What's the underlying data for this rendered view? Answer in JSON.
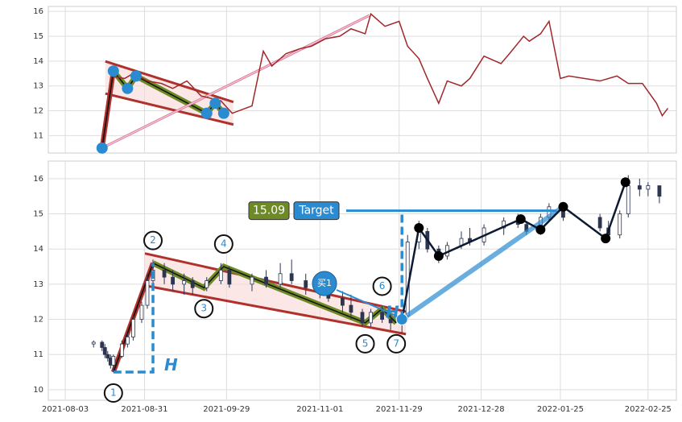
{
  "chart_data": [
    {
      "type": "line",
      "color": "#a0282b",
      "ylim": [
        10.3,
        16.2
      ],
      "yticks": [
        11,
        12,
        13,
        14,
        15,
        16
      ],
      "grid": true,
      "xlim": [
        "2021-07-28",
        "2022-03-07"
      ],
      "x": [
        "2021-08-19",
        "2021-08-24",
        "2021-08-27",
        "2021-09-01",
        "2021-09-06",
        "2021-09-10",
        "2021-09-15",
        "2021-09-20",
        "2021-09-27",
        "2021-10-01",
        "2021-10-08",
        "2021-10-12",
        "2021-10-15",
        "2021-10-20",
        "2021-10-25",
        "2021-10-29",
        "2021-11-03",
        "2021-11-08",
        "2021-11-12",
        "2021-11-17",
        "2021-11-19",
        "2021-11-24",
        "2021-11-29",
        "2021-12-02",
        "2021-12-06",
        "2021-12-09",
        "2021-12-13",
        "2021-12-16",
        "2021-12-21",
        "2021-12-24",
        "2021-12-29",
        "2022-01-04",
        "2022-01-07",
        "2022-01-12",
        "2022-01-14",
        "2022-01-18",
        "2022-01-21",
        "2022-01-25",
        "2022-01-28",
        "2022-02-08",
        "2022-02-14",
        "2022-02-18",
        "2022-02-23",
        "2022-02-28",
        "2022-03-02",
        "2022-03-04"
      ],
      "values": [
        13.4,
        13.3,
        13.5,
        13.2,
        13.1,
        12.9,
        13.2,
        12.6,
        12.4,
        11.9,
        12.2,
        14.4,
        13.8,
        14.3,
        14.5,
        14.6,
        14.9,
        15.0,
        15.3,
        15.1,
        15.9,
        15.4,
        15.6,
        14.6,
        14.1,
        13.3,
        12.3,
        13.2,
        13.0,
        13.3,
        14.2,
        13.9,
        14.3,
        15.0,
        14.8,
        15.1,
        15.6,
        13.3,
        13.4,
        13.2,
        13.4,
        13.1,
        13.1,
        12.3,
        11.8,
        12.1
      ],
      "pattern": {
        "x": [
          "2021-08-16",
          "2021-08-20",
          "2021-08-25",
          "2021-08-28",
          "2021-09-22",
          "2021-09-25",
          "2021-09-28"
        ],
        "values": [
          10.5,
          13.6,
          12.9,
          13.4,
          11.9,
          12.3,
          11.9
        ]
      }
    },
    {
      "type": "candlestick",
      "ylim": [
        9.7,
        16.5
      ],
      "yticks": [
        10,
        11,
        12,
        13,
        14,
        15,
        16
      ],
      "grid": true,
      "xlim": [
        "2021-07-28",
        "2022-03-07"
      ],
      "xticks": [
        "2021-08-03",
        "2021-08-31",
        "2021-09-29",
        "2021-11-01",
        "2021-11-29",
        "2021-12-28",
        "2022-01-25",
        "2022-02-25"
      ],
      "x": [
        "2021-08-13",
        "2021-08-16",
        "2021-08-17",
        "2021-08-18",
        "2021-08-19",
        "2021-08-20",
        "2021-08-23",
        "2021-08-25",
        "2021-08-27",
        "2021-08-30",
        "2021-09-01",
        "2021-09-03",
        "2021-09-07",
        "2021-09-10",
        "2021-09-14",
        "2021-09-17",
        "2021-09-22",
        "2021-09-27",
        "2021-09-30",
        "2021-10-08",
        "2021-10-13",
        "2021-10-18",
        "2021-10-22",
        "2021-10-27",
        "2021-11-01",
        "2021-11-04",
        "2021-11-09",
        "2021-11-12",
        "2021-11-16",
        "2021-11-19",
        "2021-11-23",
        "2021-11-26",
        "2021-11-30",
        "2021-12-02",
        "2021-12-06",
        "2021-12-09",
        "2021-12-13",
        "2021-12-16",
        "2021-12-21",
        "2021-12-24",
        "2021-12-29",
        "2022-01-05",
        "2022-01-10",
        "2022-01-13",
        "2022-01-18",
        "2022-01-21",
        "2022-01-26",
        "2022-02-08",
        "2022-02-11",
        "2022-02-15",
        "2022-02-18",
        "2022-02-22",
        "2022-02-25",
        "2022-03-01"
      ],
      "open": [
        11.3,
        11.35,
        11.2,
        11.0,
        10.9,
        10.7,
        10.95,
        11.3,
        11.5,
        12.0,
        12.4,
        13.1,
        13.4,
        13.2,
        13.0,
        13.1,
        12.9,
        13.1,
        13.4,
        13.0,
        13.2,
        13.0,
        13.3,
        13.1,
        12.9,
        12.8,
        12.6,
        12.4,
        12.2,
        11.9,
        12.2,
        12.0,
        11.9,
        12.1,
        14.2,
        14.5,
        14.0,
        13.8,
        14.1,
        14.3,
        14.2,
        14.6,
        14.8,
        14.7,
        14.5,
        14.9,
        15.2,
        14.9,
        14.6,
        14.4,
        15.0,
        15.8,
        15.7,
        15.8
      ],
      "high": [
        11.4,
        11.4,
        11.3,
        11.1,
        11.0,
        11.0,
        11.4,
        11.6,
        12.1,
        12.5,
        13.3,
        13.7,
        13.6,
        13.4,
        13.3,
        13.2,
        13.2,
        13.6,
        13.5,
        13.3,
        13.4,
        13.6,
        13.7,
        13.3,
        13.1,
        13.0,
        12.8,
        12.7,
        12.3,
        12.3,
        12.4,
        12.2,
        12.2,
        14.4,
        14.8,
        14.6,
        14.1,
        14.2,
        14.5,
        14.6,
        14.7,
        14.9,
        15.0,
        14.8,
        15.0,
        15.3,
        15.3,
        15.0,
        14.8,
        15.1,
        16.1,
        16.0,
        15.9,
        15.8
      ],
      "low": [
        11.2,
        11.1,
        10.9,
        10.8,
        10.6,
        10.5,
        10.9,
        11.2,
        11.4,
        11.9,
        12.3,
        13.0,
        13.0,
        12.8,
        12.7,
        12.7,
        12.8,
        13.0,
        12.9,
        12.8,
        12.9,
        12.9,
        13.0,
        12.7,
        12.6,
        12.5,
        12.2,
        12.0,
        11.8,
        11.8,
        11.9,
        11.7,
        11.6,
        12.0,
        14.0,
        13.9,
        13.6,
        13.7,
        14.0,
        14.1,
        14.1,
        14.4,
        14.6,
        14.4,
        14.4,
        14.8,
        14.8,
        14.5,
        14.2,
        14.3,
        14.9,
        15.5,
        15.5,
        15.3
      ],
      "close": [
        11.35,
        11.2,
        11.0,
        10.9,
        10.7,
        10.95,
        11.3,
        11.5,
        12.0,
        12.4,
        13.1,
        13.4,
        13.2,
        13.0,
        13.1,
        12.9,
        13.1,
        13.4,
        13.0,
        13.2,
        13.0,
        13.3,
        13.1,
        12.9,
        12.8,
        12.6,
        12.4,
        12.2,
        11.9,
        12.2,
        12.0,
        11.9,
        12.1,
        14.2,
        14.5,
        14.0,
        13.8,
        14.1,
        14.3,
        14.2,
        14.6,
        14.8,
        14.7,
        14.5,
        14.9,
        15.2,
        14.9,
        14.6,
        14.4,
        15.0,
        15.8,
        15.7,
        15.8,
        15.5
      ],
      "pattern": {
        "x": [
          "2021-08-20",
          "2021-09-03",
          "2021-09-21",
          "2021-09-28",
          "2021-11-17",
          "2021-11-23",
          "2021-11-28"
        ],
        "values": [
          10.5,
          13.6,
          12.9,
          13.5,
          11.9,
          12.3,
          11.9
        ],
        "labels": [
          "1",
          "2",
          "3",
          "4",
          "5",
          "6",
          "7"
        ]
      },
      "buy": {
        "x": "2021-11-30",
        "value": 12.0,
        "label": "买1"
      },
      "breakout": {
        "x": [
          "2021-12-06",
          "2021-12-13",
          "2022-01-11",
          "2022-01-18",
          "2022-01-26",
          "2022-02-10",
          "2022-02-17"
        ],
        "values": [
          14.6,
          13.8,
          14.85,
          14.55,
          15.2,
          14.3,
          15.9
        ]
      },
      "target": {
        "value": 15.09,
        "label": "Target"
      },
      "height_label": "H"
    }
  ]
}
